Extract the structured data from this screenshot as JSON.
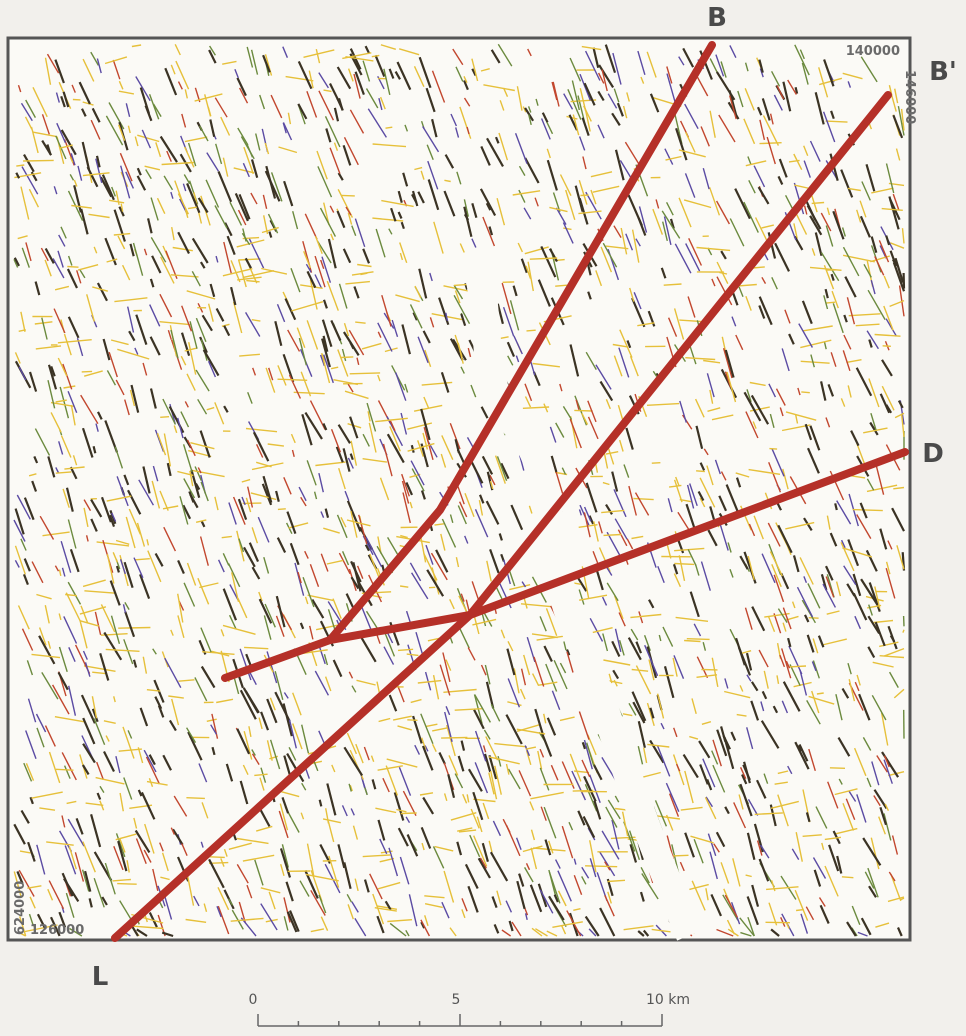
{
  "labels": {
    "b": "B",
    "b_prime": "B'",
    "d": "D",
    "l": "L"
  },
  "coordinates": {
    "top_right": "140000",
    "right_vertical": "146000",
    "left_vertical": "624000",
    "bottom_left": "126000"
  },
  "scale_bar": {
    "labels": [
      "0",
      "5",
      "10 km"
    ]
  }
}
